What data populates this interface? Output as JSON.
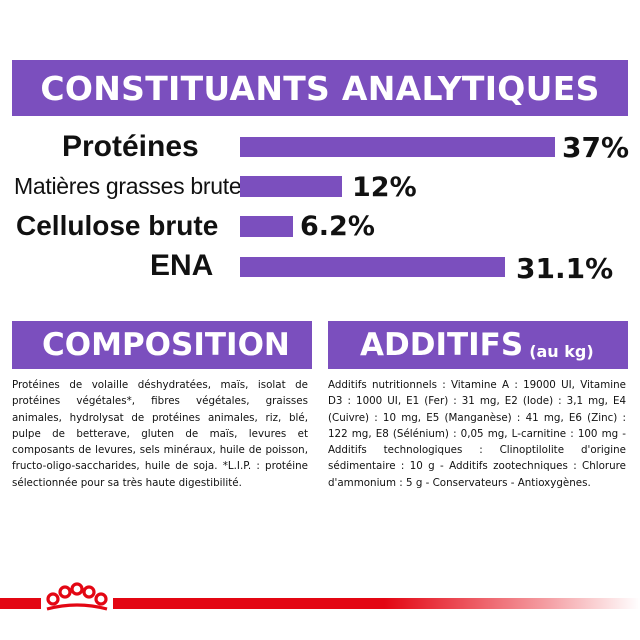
{
  "title": "CONSTITUANTS ANALYTIQUES",
  "analytics": [
    {
      "label": "Protéines",
      "value_label": "37%",
      "value": 37
    },
    {
      "label": "Matières grasses brutes",
      "value_label": "12%",
      "value": 12
    },
    {
      "label": "Cellulose brute",
      "value_label": "6.2%",
      "value": 6.2
    },
    {
      "label": "ENA",
      "value_label": "31.1%",
      "value": 31.1
    }
  ],
  "composition": {
    "title": "COMPOSITION",
    "text": "Protéines de volaille déshydratées, maïs, isolat de protéines végétales*, fibres végétales, graisses animales, hydrolysat de protéines animales, riz, blé, pulpe de betterave, gluten de maïs, levures et composants de levures, sels minéraux, huile de poisson, fructo-oligo-saccharides, huile de soja. *L.I.P. : protéine sélectionnée pour sa très haute digestibilité."
  },
  "additifs": {
    "title": "ADDITIFS",
    "subtitle": "(au kg)",
    "text": "Additifs nutritionnels : Vitamine A : 19000 UI, Vitamine D3 : 1000 UI, E1 (Fer) : 31 mg, E2 (Iode) : 3,1 mg, E4 (Cuivre) : 10 mg, E5 (Manganèse) : 41 mg, E6 (Zinc) : 122 mg, E8 (Sélénium) : 0,05 mg, L-carnitine : 100 mg - Additifs technologiques : Clinoptilolite d'origine sédimentaire : 10 g - Additifs zootechniques : Chlorure d'ammonium : 5 g - Conservateurs - Antioxygènes."
  },
  "colors": {
    "purple": "#7b4fbe",
    "red": "#e30613"
  },
  "logo": "royal-canin-crown-icon"
}
